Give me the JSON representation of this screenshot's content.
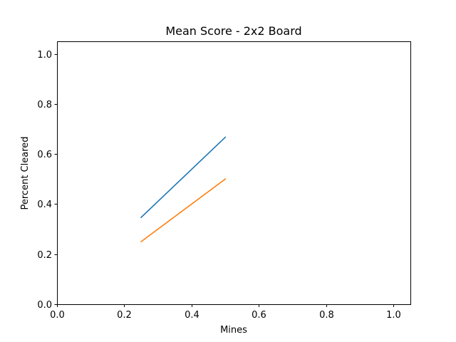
{
  "chart_data": {
    "type": "line",
    "title": "Mean Score - 2x2 Board",
    "xlabel": "Mines",
    "ylabel": "Percent Cleared",
    "xlim": [
      0.0,
      1.05
    ],
    "ylim": [
      0.0,
      1.05
    ],
    "xticks": [
      0.0,
      0.2,
      0.4,
      0.6,
      0.8,
      1.0
    ],
    "yticks": [
      0.0,
      0.2,
      0.4,
      0.6,
      0.8,
      1.0
    ],
    "xtick_labels": [
      "0.0",
      "0.2",
      "0.4",
      "0.6",
      "0.8",
      "1.0"
    ],
    "ytick_labels": [
      "0.0",
      "0.2",
      "0.4",
      "0.6",
      "0.8",
      "1.0"
    ],
    "grid": false,
    "legend": false,
    "series": [
      {
        "color": "#1f77b4",
        "x": [
          0.25,
          0.5
        ],
        "y": [
          0.347,
          0.667
        ]
      },
      {
        "color": "#ff7f0e",
        "x": [
          0.25,
          0.5
        ],
        "y": [
          0.25,
          0.5
        ]
      }
    ]
  }
}
